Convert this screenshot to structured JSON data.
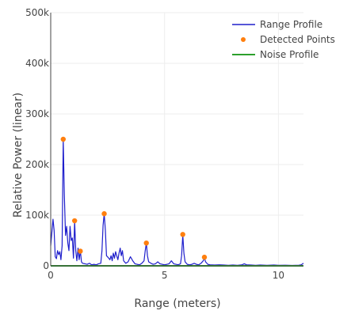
{
  "chart_data": {
    "type": "line",
    "title": "",
    "xlabel": "Range (meters)",
    "ylabel": "Relative Power (linear)",
    "xlim": [
      0,
      11.1
    ],
    "ylim": [
      0,
      500000
    ],
    "grid": true,
    "legend_position": "top-right",
    "x_ticks": [
      {
        "value": 0,
        "label": "0"
      },
      {
        "value": 5,
        "label": "5"
      },
      {
        "value": 10,
        "label": "10"
      }
    ],
    "y_ticks": [
      {
        "value": 0,
        "label": "0"
      },
      {
        "value": 100000,
        "label": "100k"
      },
      {
        "value": 200000,
        "label": "200k"
      },
      {
        "value": 300000,
        "label": "300k"
      },
      {
        "value": 400000,
        "label": "400k"
      },
      {
        "value": 500000,
        "label": "500k"
      }
    ],
    "series": [
      {
        "name": "Range Profile",
        "kind": "line",
        "color": "#1f1fcc",
        "points": [
          [
            0,
            40000
          ],
          [
            0.1,
            92000
          ],
          [
            0.15,
            70000
          ],
          [
            0.2,
            18000
          ],
          [
            0.25,
            14000
          ],
          [
            0.3,
            30000
          ],
          [
            0.35,
            22000
          ],
          [
            0.4,
            28000
          ],
          [
            0.45,
            12000
          ],
          [
            0.5,
            40000
          ],
          [
            0.55,
            250000
          ],
          [
            0.6,
            140000
          ],
          [
            0.65,
            60000
          ],
          [
            0.7,
            78000
          ],
          [
            0.75,
            45000
          ],
          [
            0.8,
            30000
          ],
          [
            0.85,
            78000
          ],
          [
            0.9,
            50000
          ],
          [
            0.95,
            55000
          ],
          [
            1.0,
            15000
          ],
          [
            1.05,
            88000
          ],
          [
            1.1,
            30000
          ],
          [
            1.15,
            10000
          ],
          [
            1.2,
            35000
          ],
          [
            1.25,
            12000
          ],
          [
            1.3,
            30000
          ],
          [
            1.35,
            8000
          ],
          [
            1.4,
            5000
          ],
          [
            1.5,
            4000
          ],
          [
            1.6,
            3000
          ],
          [
            1.7,
            5000
          ],
          [
            1.8,
            2000
          ],
          [
            1.9,
            3000
          ],
          [
            2.0,
            2000
          ],
          [
            2.1,
            4000
          ],
          [
            2.2,
            5000
          ],
          [
            2.25,
            30000
          ],
          [
            2.3,
            80000
          ],
          [
            2.35,
            103000
          ],
          [
            2.4,
            70000
          ],
          [
            2.45,
            20000
          ],
          [
            2.55,
            15000
          ],
          [
            2.6,
            12000
          ],
          [
            2.65,
            20000
          ],
          [
            2.7,
            10000
          ],
          [
            2.75,
            25000
          ],
          [
            2.8,
            15000
          ],
          [
            2.85,
            28000
          ],
          [
            2.9,
            20000
          ],
          [
            2.95,
            12000
          ],
          [
            3.0,
            25000
          ],
          [
            3.05,
            35000
          ],
          [
            3.1,
            20000
          ],
          [
            3.15,
            30000
          ],
          [
            3.2,
            10000
          ],
          [
            3.3,
            5000
          ],
          [
            3.4,
            8000
          ],
          [
            3.5,
            18000
          ],
          [
            3.6,
            10000
          ],
          [
            3.7,
            4000
          ],
          [
            3.8,
            3000
          ],
          [
            3.9,
            2000
          ],
          [
            4.0,
            5000
          ],
          [
            4.1,
            10000
          ],
          [
            4.15,
            30000
          ],
          [
            4.2,
            45000
          ],
          [
            4.25,
            20000
          ],
          [
            4.3,
            8000
          ],
          [
            4.4,
            5000
          ],
          [
            4.5,
            3000
          ],
          [
            4.6,
            4000
          ],
          [
            4.7,
            8000
          ],
          [
            4.8,
            4000
          ],
          [
            4.9,
            3000
          ],
          [
            5.0,
            2000
          ],
          [
            5.1,
            3000
          ],
          [
            5.2,
            4000
          ],
          [
            5.3,
            10000
          ],
          [
            5.4,
            4000
          ],
          [
            5.5,
            3000
          ],
          [
            5.6,
            2000
          ],
          [
            5.7,
            4000
          ],
          [
            5.75,
            20000
          ],
          [
            5.8,
            61000
          ],
          [
            5.85,
            25000
          ],
          [
            5.9,
            8000
          ],
          [
            6.0,
            3000
          ],
          [
            6.1,
            2000
          ],
          [
            6.2,
            3000
          ],
          [
            6.3,
            5000
          ],
          [
            6.4,
            3000
          ],
          [
            6.5,
            2000
          ],
          [
            6.6,
            5000
          ],
          [
            6.7,
            10000
          ],
          [
            6.75,
            16000
          ],
          [
            6.8,
            8000
          ],
          [
            6.9,
            3000
          ],
          [
            7.0,
            2000
          ],
          [
            7.2,
            1500
          ],
          [
            7.4,
            2000
          ],
          [
            7.6,
            1500
          ],
          [
            7.8,
            1000
          ],
          [
            8.0,
            1500
          ],
          [
            8.2,
            1000
          ],
          [
            8.4,
            2000
          ],
          [
            8.5,
            4000
          ],
          [
            8.6,
            2000
          ],
          [
            8.8,
            1500
          ],
          [
            9.0,
            1000
          ],
          [
            9.2,
            1500
          ],
          [
            9.5,
            1000
          ],
          [
            9.8,
            1500
          ],
          [
            10.0,
            1000
          ],
          [
            10.3,
            1200
          ],
          [
            10.6,
            800
          ],
          [
            10.9,
            1200
          ],
          [
            11.0,
            2000
          ],
          [
            11.1,
            5000
          ]
        ]
      },
      {
        "name": "Detected Points",
        "kind": "markers",
        "color": "#ff7f0e",
        "points": [
          [
            0.55,
            250000
          ],
          [
            1.05,
            89000
          ],
          [
            1.3,
            29000
          ],
          [
            2.35,
            103000
          ],
          [
            4.2,
            45000
          ],
          [
            5.8,
            62000
          ],
          [
            6.75,
            17000
          ]
        ]
      },
      {
        "name": "Noise Profile",
        "kind": "line",
        "color": "#2ca02c",
        "points": [
          [
            0,
            0
          ],
          [
            11.1,
            0
          ]
        ]
      }
    ]
  }
}
